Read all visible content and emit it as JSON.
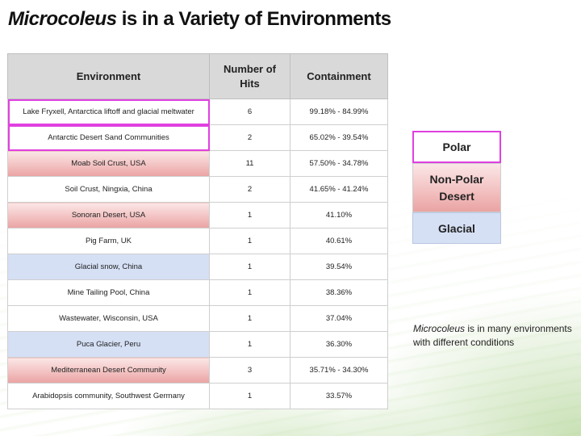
{
  "title": {
    "italic": "Microcoleus",
    "rest": " is in a Variety of Environments"
  },
  "table": {
    "headers": [
      "Environment",
      "Number of Hits",
      "Containment"
    ],
    "rows": [
      {
        "environment": "Lake Fryxell, Antarctica liftoff and glacial meltwater",
        "hits": "6",
        "containment": "99.18% - 84.99%",
        "category": "polar"
      },
      {
        "environment": "Antarctic Desert Sand Communities",
        "hits": "2",
        "containment": "65.02% - 39.54%",
        "category": "polar"
      },
      {
        "environment": "Moab Soil Crust, USA",
        "hits": "11",
        "containment": "57.50% - 34.78%",
        "category": "nonpolar"
      },
      {
        "environment": "Soil Crust, Ningxia, China",
        "hits": "2",
        "containment": "41.65% - 41.24%",
        "category": "none"
      },
      {
        "environment": "Sonoran Desert, USA",
        "hits": "1",
        "containment": "41.10%",
        "category": "nonpolar"
      },
      {
        "environment": "Pig Farm, UK",
        "hits": "1",
        "containment": "40.61%",
        "category": "none"
      },
      {
        "environment": "Glacial snow, China",
        "hits": "1",
        "containment": "39.54%",
        "category": "glacial"
      },
      {
        "environment": "Mine Tailing Pool, China",
        "hits": "1",
        "containment": "38.36%",
        "category": "none"
      },
      {
        "environment": "Wastewater, Wisconsin, USA",
        "hits": "1",
        "containment": "37.04%",
        "category": "none"
      },
      {
        "environment": "Puca Glacier, Peru",
        "hits": "1",
        "containment": "36.30%",
        "category": "glacial"
      },
      {
        "environment": "Mediterranean Desert Community",
        "hits": "3",
        "containment": "35.71% - 34.30%",
        "category": "nonpolar"
      },
      {
        "environment": "Arabidopsis community, Southwest Germany",
        "hits": "1",
        "containment": "33.57%",
        "category": "none"
      }
    ]
  },
  "legend": {
    "polar": "Polar",
    "nonpolar": "Non-Polar Desert",
    "glacial": "Glacial"
  },
  "note": {
    "italic": "Microcoleus",
    "rest": " is in many environments with different conditions"
  },
  "colors": {
    "polar_outline": "#e040e0",
    "nonpolar_fill": "#f3c2c2",
    "glacial_fill": "#d5e0f5",
    "header_fill": "#d9d9d9"
  }
}
